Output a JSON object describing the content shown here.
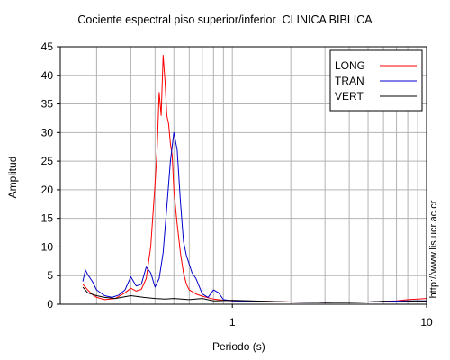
{
  "chart_data": {
    "type": "line",
    "title": "Cociente espectral piso superior/inferior  CLINICA BIBLICA",
    "xlabel": "Periodo (s)",
    "ylabel": "Amplitud",
    "x_scale": "log",
    "xlim": [
      0.13,
      10
    ],
    "ylim": [
      0,
      45
    ],
    "x_ticks": [
      1,
      10
    ],
    "x_tick_labels": [
      "1",
      "10"
    ],
    "y_ticks": [
      0,
      5,
      10,
      15,
      20,
      25,
      30,
      35,
      40,
      45
    ],
    "y_tick_labels": [
      "0",
      "5",
      "10",
      "15",
      "20",
      "25",
      "30",
      "35",
      "40",
      "45"
    ],
    "grid": true,
    "legend_position": "top-right",
    "series": [
      {
        "name": "LONG",
        "color": "#ff0000",
        "x": [
          0.17,
          0.18,
          0.19,
          0.2,
          0.22,
          0.25,
          0.28,
          0.3,
          0.32,
          0.34,
          0.36,
          0.38,
          0.4,
          0.41,
          0.42,
          0.43,
          0.44,
          0.45,
          0.46,
          0.47,
          0.48,
          0.49,
          0.5,
          0.52,
          0.54,
          0.56,
          0.58,
          0.6,
          0.65,
          0.7,
          0.8,
          0.9,
          1.0,
          1.2,
          1.5,
          2.0,
          3.0,
          4.0,
          5.0,
          6.0,
          7.0,
          8.0,
          9.0,
          10.0
        ],
        "y": [
          3.5,
          2.5,
          1.7,
          1.2,
          0.8,
          1.0,
          2.0,
          2.8,
          2.3,
          2.6,
          4.5,
          10.0,
          21.0,
          27.0,
          37.0,
          33.0,
          43.5,
          39.0,
          33.0,
          31.5,
          28.0,
          26.0,
          20.0,
          14.0,
          9.0,
          5.5,
          3.5,
          2.5,
          1.8,
          1.4,
          0.9,
          0.7,
          0.6,
          0.5,
          0.5,
          0.4,
          0.3,
          0.35,
          0.4,
          0.5,
          0.6,
          0.8,
          0.9,
          1.0
        ]
      },
      {
        "name": "TRAN",
        "color": "#0000cc",
        "x": [
          0.17,
          0.175,
          0.18,
          0.19,
          0.2,
          0.22,
          0.24,
          0.26,
          0.28,
          0.3,
          0.32,
          0.34,
          0.36,
          0.38,
          0.4,
          0.42,
          0.44,
          0.46,
          0.48,
          0.5,
          0.52,
          0.54,
          0.56,
          0.58,
          0.6,
          0.62,
          0.65,
          0.7,
          0.75,
          0.8,
          0.85,
          0.9,
          1.0,
          1.2,
          1.5,
          2.0,
          3.0,
          4.0,
          5.0,
          6.0,
          8.0,
          10.0
        ],
        "y": [
          4.0,
          6.0,
          5.2,
          4.0,
          2.5,
          1.5,
          1.2,
          1.6,
          2.5,
          4.8,
          3.2,
          3.5,
          6.5,
          5.5,
          3.0,
          4.5,
          9.0,
          17.0,
          25.0,
          30.0,
          27.0,
          18.0,
          11.0,
          8.5,
          7.0,
          5.5,
          4.5,
          1.8,
          1.2,
          2.5,
          2.0,
          0.8,
          0.6,
          0.5,
          0.4,
          0.4,
          0.3,
          0.35,
          0.4,
          0.5,
          0.6,
          0.6
        ]
      },
      {
        "name": "VERT",
        "color": "#000000",
        "x": [
          0.17,
          0.18,
          0.2,
          0.22,
          0.25,
          0.3,
          0.35,
          0.4,
          0.45,
          0.5,
          0.6,
          0.7,
          0.8,
          1.0,
          1.5,
          2.0,
          3.0,
          4.0,
          5.0,
          6.0,
          7.0,
          8.0,
          9.0,
          10.0
        ],
        "y": [
          3.0,
          2.0,
          1.5,
          1.2,
          1.0,
          1.5,
          1.2,
          1.0,
          0.9,
          1.0,
          0.8,
          1.0,
          0.6,
          0.7,
          0.5,
          0.4,
          0.3,
          0.3,
          0.4,
          0.5,
          0.4,
          0.5,
          0.6,
          0.5
        ]
      }
    ],
    "annotation": "http://www.lis.ucr.ac.cr"
  }
}
